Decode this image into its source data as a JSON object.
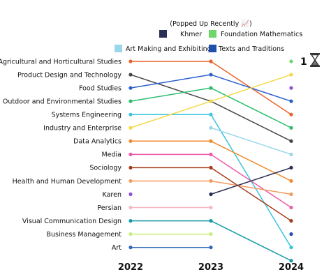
{
  "chart_data": {
    "type": "line",
    "title": "",
    "x": [
      "2022",
      "2023",
      "2024"
    ],
    "y_axis": "rank (1 = top)",
    "grid": false,
    "legend": {
      "title": "(Popped Up Recently 📈)",
      "placement": "top-right",
      "entries": [
        "Khmer",
        "Foundation Mathematics",
        "Art Making and Exhibiting",
        "Texts and Traditions"
      ]
    },
    "top_rank_annotation": {
      "text": "1",
      "icon": "hourglass-icon"
    },
    "series": [
      {
        "name": "Agricultural and Horticultural Studies",
        "color": "#e8632d",
        "ranks": [
          1,
          1,
          5
        ]
      },
      {
        "name": "Product Design and Technology",
        "color": "#444444",
        "ranks": [
          2,
          4,
          7
        ]
      },
      {
        "name": "Food Studies",
        "color": "#2b5fcc",
        "ranks": [
          3,
          2,
          4
        ]
      },
      {
        "name": "Outdoor and Environmental Studies",
        "color": "#2dbd6f",
        "ranks": [
          4,
          3,
          6
        ]
      },
      {
        "name": "Systems Engineering",
        "color": "#3cc4df",
        "ranks": [
          5,
          5,
          15
        ]
      },
      {
        "name": "Industry and Enterprise",
        "color": "#f5d94a",
        "ranks": [
          6,
          4,
          2
        ]
      },
      {
        "name": "Data Analytics",
        "color": "#ef8a2f",
        "ranks": [
          7,
          7,
          10
        ]
      },
      {
        "name": "Media",
        "color": "#ee5aa8",
        "ranks": [
          8,
          8,
          12
        ]
      },
      {
        "name": "Sociology",
        "color": "#a63c1c",
        "ranks": [
          9,
          9,
          13
        ]
      },
      {
        "name": "Health and Human Development",
        "color": "#f49a5f",
        "ranks": [
          10,
          10,
          11
        ]
      },
      {
        "name": "Karen",
        "color": "#8e4ed8",
        "ranks": [
          11,
          null,
          3
        ]
      },
      {
        "name": "Persian",
        "color": "#f7b8c1",
        "ranks": [
          12,
          12,
          null
        ]
      },
      {
        "name": "Visual Communication Design",
        "color": "#1a9aa5",
        "ranks": [
          13,
          13,
          16
        ]
      },
      {
        "name": "Business Management",
        "color": "#c8ee7a",
        "ranks": [
          14,
          14,
          null
        ]
      },
      {
        "name": "Art",
        "color": "#2f66b8",
        "ranks": [
          15,
          15,
          null
        ]
      },
      {
        "name": "Khmer",
        "color": "#2b2f55",
        "ranks": [
          null,
          11,
          9
        ]
      },
      {
        "name": "Foundation Mathematics",
        "color": "#6ed66a",
        "ranks": [
          null,
          null,
          1
        ]
      },
      {
        "name": "Art Making and Exhibiting",
        "color": "#9ad7ea",
        "ranks": [
          null,
          6,
          8
        ]
      },
      {
        "name": "Texts and Traditions",
        "color": "#1f4fae",
        "ranks": [
          null,
          null,
          14
        ]
      }
    ]
  }
}
